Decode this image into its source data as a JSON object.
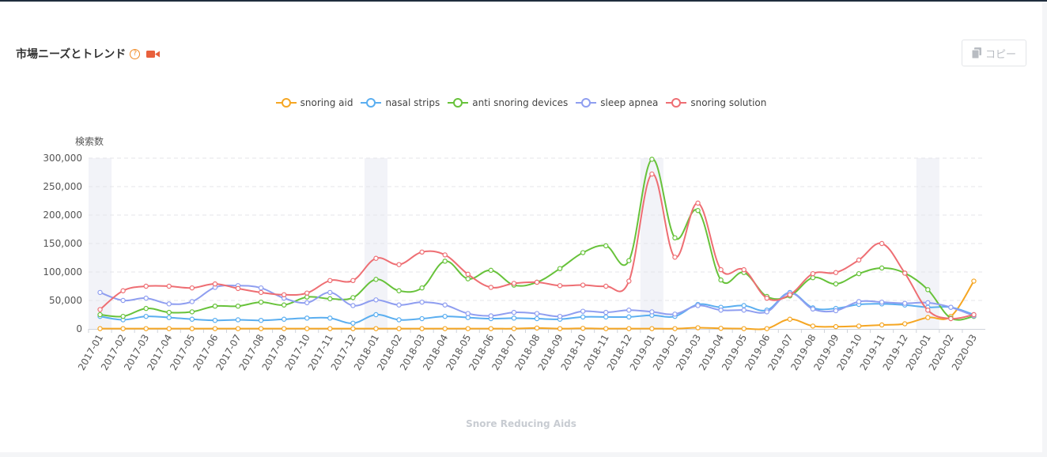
{
  "header": {
    "title": "市場ニーズとトレンド",
    "help_icon": "question-circle-icon",
    "video_icon": "video-camera-icon",
    "accent_color": "#f08a24",
    "video_color": "#e8603c"
  },
  "toolbar": {
    "copy_label": "コピー",
    "copy_icon": "copy-icon"
  },
  "footer": {
    "title": "Snore Reducing Aids"
  },
  "chart_data": {
    "type": "line",
    "title": "",
    "ylabel": "検索数",
    "xlabel": "",
    "ylim": [
      0,
      300000
    ],
    "yticks": [
      0,
      50000,
      100000,
      150000,
      200000,
      250000,
      300000
    ],
    "ytick_labels": [
      "0",
      "50,000",
      "100,000",
      "150,000",
      "200,000",
      "250,000",
      "300,000"
    ],
    "grid": "horizontal-dashed",
    "legend_position": "top-center",
    "highlight_categories": [
      "2017-01",
      "2018-01",
      "2019-01",
      "2020-01"
    ],
    "categories": [
      "2017-01",
      "2017-02",
      "2017-03",
      "2017-04",
      "2017-05",
      "2017-06",
      "2017-07",
      "2017-08",
      "2017-09",
      "2017-10",
      "2017-11",
      "2017-12",
      "2018-01",
      "2018-02",
      "2018-03",
      "2018-04",
      "2018-05",
      "2018-06",
      "2018-07",
      "2018-08",
      "2018-09",
      "2018-10",
      "2018-11",
      "2018-12",
      "2019-01",
      "2019-02",
      "2019-03",
      "2019-04",
      "2019-05",
      "2019-06",
      "2019-07",
      "2019-08",
      "2019-09",
      "2019-10",
      "2019-11",
      "2019-12",
      "2020-01",
      "2020-02",
      "2020-03"
    ],
    "series": [
      {
        "name": "snoring aid",
        "color": "#f5a623",
        "values": [
          500,
          500,
          500,
          500,
          500,
          500,
          500,
          500,
          500,
          500,
          500,
          500,
          500,
          500,
          500,
          500,
          500,
          500,
          500,
          1500,
          500,
          1000,
          500,
          500,
          500,
          500,
          2000,
          1000,
          500,
          500,
          17000,
          5000,
          4000,
          5000,
          7000,
          9000,
          20000,
          22000,
          84000
        ]
      },
      {
        "name": "nasal strips",
        "color": "#5aaef0",
        "values": [
          22000,
          16000,
          22000,
          20000,
          17000,
          15000,
          16000,
          15000,
          17000,
          19000,
          19000,
          10000,
          25000,
          16000,
          18000,
          22000,
          20000,
          18000,
          19000,
          18000,
          17000,
          21000,
          21000,
          21000,
          24000,
          22000,
          43000,
          38000,
          41000,
          33000,
          64000,
          37000,
          36000,
          43000,
          44000,
          42000,
          38000,
          38000,
          25000
        ]
      },
      {
        "name": "anti snoring devices",
        "color": "#67c23a",
        "values": [
          25000,
          22000,
          36000,
          29000,
          30000,
          40000,
          40000,
          47000,
          42000,
          56000,
          53000,
          55000,
          87000,
          67000,
          72000,
          119000,
          88000,
          103000,
          77000,
          82000,
          106000,
          134000,
          146000,
          120000,
          298000,
          160000,
          208000,
          86000,
          99000,
          57000,
          58000,
          90000,
          79000,
          97000,
          107000,
          98000,
          69000,
          19000,
          22000
        ]
      },
      {
        "name": "sleep apnea",
        "color": "#8f9ef0",
        "values": [
          64000,
          50000,
          54000,
          44000,
          48000,
          73000,
          76000,
          72000,
          54000,
          46000,
          64000,
          41000,
          51000,
          42000,
          47000,
          42000,
          27000,
          23000,
          29000,
          27000,
          22000,
          31000,
          29000,
          33000,
          30000,
          26000,
          41000,
          33000,
          33000,
          30000,
          63000,
          35000,
          32000,
          48000,
          47000,
          45000,
          46000,
          38000,
          23000
        ]
      },
      {
        "name": "snoring solution",
        "color": "#ee6e73",
        "values": [
          34000,
          67000,
          75000,
          75000,
          72000,
          79000,
          71000,
          64000,
          60000,
          63000,
          85000,
          85000,
          124000,
          113000,
          135000,
          130000,
          96000,
          73000,
          80000,
          82000,
          76000,
          77000,
          75000,
          84000,
          272000,
          126000,
          221000,
          104000,
          104000,
          54000,
          60000,
          97000,
          99000,
          121000,
          150000,
          98000,
          33000,
          18000,
          25000
        ]
      }
    ]
  }
}
